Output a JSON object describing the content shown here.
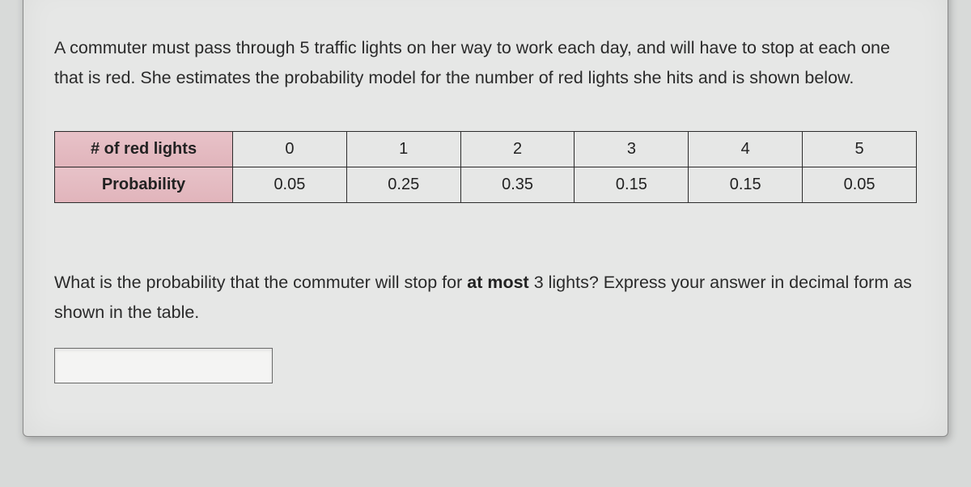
{
  "problem": {
    "intro_text": "A commuter must pass through 5 traffic lights on her way to work each day, and will have to stop at each one that is red.  She estimates the probability model for the number of red lights she hits and is shown below.",
    "question_prefix": "What is the probability that the commuter will stop for ",
    "question_emph": "at most",
    "question_suffix": " 3 lights?  Express your answer in decimal form as shown in the table."
  },
  "table": {
    "row_headers": [
      "# of red lights",
      "Probability"
    ],
    "columns": [
      "0",
      "1",
      "2",
      "3",
      "4",
      "5"
    ],
    "rows": [
      [
        "0",
        "1",
        "2",
        "3",
        "4",
        "5"
      ],
      [
        "0.05",
        "0.25",
        "0.35",
        "0.15",
        "0.15",
        "0.05"
      ]
    ],
    "header_bg_color": "#e1b9c0",
    "border_color": "#2c2c2c",
    "cell_bg_color": "#e6e7e6",
    "cell_fontsize": 20
  },
  "answer": {
    "value": "",
    "placeholder": ""
  },
  "style": {
    "page_bg": "#d8dad9",
    "panel_bg": "#e6e7e6",
    "text_color": "#222222",
    "body_fontsize": 21.5
  }
}
